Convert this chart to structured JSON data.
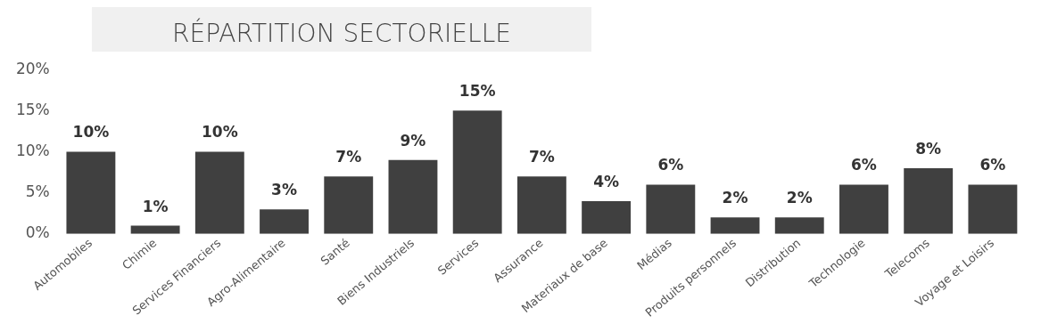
{
  "chart_data": {
    "type": "bar",
    "title": "RÉPARTITION SECTORIELLE",
    "categories": [
      "Automobiles",
      "Chimie",
      "Services Financiers",
      "Agro-Alimentaire",
      "Santé",
      "Biens Industriels",
      "Services",
      "Assurance",
      "Materiaux de base",
      "Médias",
      "Produits personnels",
      "Distribution",
      "Technologie",
      "Telecoms",
      "Voyage et Loisirs"
    ],
    "values": [
      10,
      1,
      10,
      3,
      7,
      9,
      15,
      7,
      4,
      6,
      2,
      2,
      6,
      8,
      6
    ],
    "value_labels": [
      "10%",
      "1%",
      "10%",
      "3%",
      "7%",
      "9%",
      "15%",
      "7%",
      "4%",
      "6%",
      "2%",
      "2%",
      "6%",
      "8%",
      "6%"
    ],
    "color": "#404040",
    "ylim": [
      0,
      20
    ],
    "yticks": [
      {
        "value": 0,
        "label": "0%"
      },
      {
        "value": 5,
        "label": "5%"
      },
      {
        "value": 10,
        "label": "10%"
      },
      {
        "value": 15,
        "label": "15%"
      },
      {
        "value": 20,
        "label": "20%"
      }
    ],
    "grid": false,
    "legend": false
  }
}
